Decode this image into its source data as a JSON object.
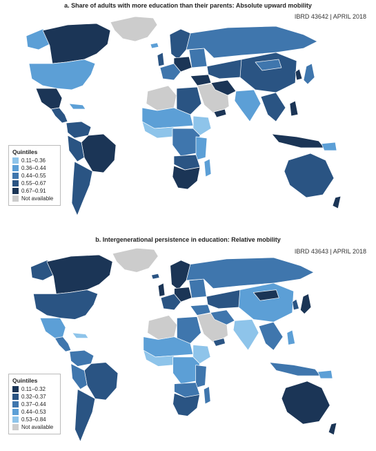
{
  "maps": [
    {
      "title": "a. Share of adults with more education than their parents: Absolute upward mobility",
      "ibrd": "IBRD 43642  |  APRIL 2018",
      "legend": {
        "title": "Quintiles",
        "items": [
          {
            "label": "0.11–0.36",
            "color": "#8ec4ea"
          },
          {
            "label": "0.36–0.44",
            "color": "#5c9fd6"
          },
          {
            "label": "0.44–0.55",
            "color": "#3f76ad"
          },
          {
            "label": "0.55–0.67",
            "color": "#2a5483"
          },
          {
            "label": "0.67–0.91",
            "color": "#1b3556"
          },
          {
            "label": "Not available",
            "color": "#cccccc"
          }
        ]
      }
    },
    {
      "title": "b. Intergenerational persistence in education: Relative mobility",
      "ibrd": "IBRD 43643  |  APRIL 2018",
      "legend": {
        "title": "Quintiles",
        "items": [
          {
            "label": "0.11–0.32",
            "color": "#1b3556"
          },
          {
            "label": "0.32–0.37",
            "color": "#2a5483"
          },
          {
            "label": "0.37–0.44",
            "color": "#3f76ad"
          },
          {
            "label": "0.44–0.53",
            "color": "#5c9fd6"
          },
          {
            "label": "0.53–0.84",
            "color": "#8ec4ea"
          },
          {
            "label": "Not available",
            "color": "#cccccc"
          }
        ]
      }
    }
  ]
}
